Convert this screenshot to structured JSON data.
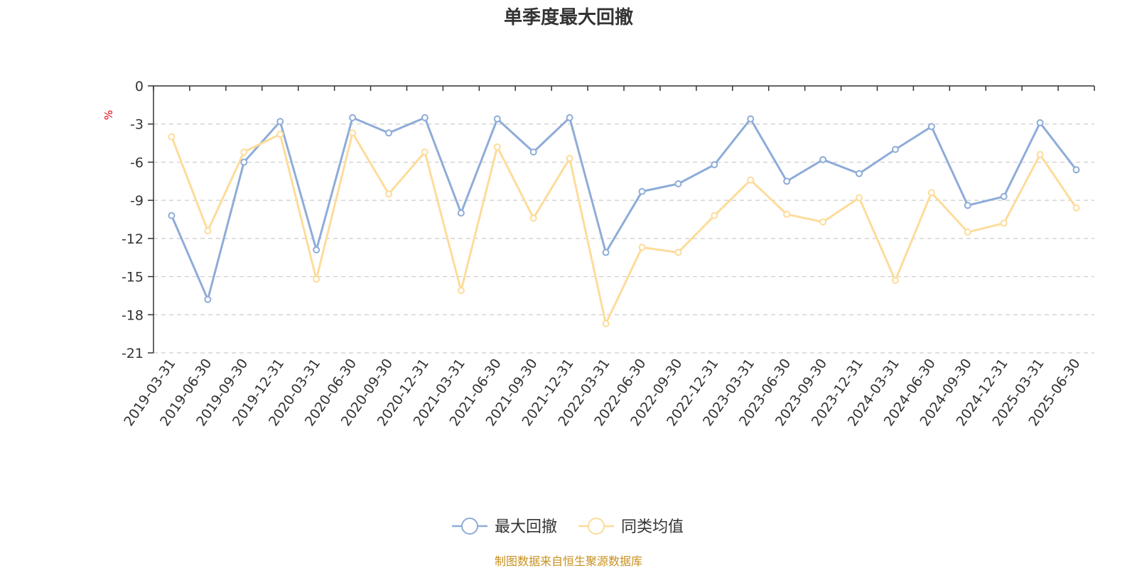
{
  "chart_data": {
    "type": "line",
    "title": "单季度最大回撤",
    "unit_label": "%",
    "x": [
      "2019-03-31",
      "2019-06-30",
      "2019-09-30",
      "2019-12-31",
      "2020-03-31",
      "2020-06-30",
      "2020-09-30",
      "2020-12-31",
      "2021-03-31",
      "2021-06-30",
      "2021-09-30",
      "2021-12-31",
      "2022-03-31",
      "2022-06-30",
      "2022-09-30",
      "2022-12-31",
      "2023-03-31",
      "2023-06-30",
      "2023-09-30",
      "2023-12-31",
      "2024-03-31",
      "2024-06-30",
      "2024-09-30",
      "2024-12-31",
      "2025-03-31",
      "2025-06-30"
    ],
    "yticks": [
      0,
      -3,
      -6,
      -9,
      -12,
      -15,
      -18,
      -21
    ],
    "ylim": [
      -21,
      0
    ],
    "grid": true,
    "legend_position": "bottom",
    "series": [
      {
        "name": "最大回撤",
        "color": "#8eacd8",
        "values": [
          -10.2,
          -16.8,
          -6.0,
          -2.8,
          -12.9,
          -2.5,
          -3.7,
          -2.5,
          -10.0,
          -2.6,
          -5.2,
          -2.5,
          -13.1,
          -8.3,
          -7.7,
          -6.2,
          -2.6,
          -7.5,
          -5.8,
          -6.9,
          -5.0,
          -3.2,
          -9.4,
          -8.7,
          -2.9,
          -6.6
        ]
      },
      {
        "name": "同类均值",
        "color": "#fddc9a",
        "values": [
          -4.0,
          -11.4,
          -5.2,
          -3.8,
          -15.2,
          -3.7,
          -8.5,
          -5.2,
          -16.1,
          -4.8,
          -10.4,
          -5.7,
          -18.7,
          -12.7,
          -13.1,
          -10.2,
          -7.4,
          -10.1,
          -10.7,
          -8.8,
          -15.3,
          -8.4,
          -11.5,
          -10.8,
          -5.4,
          -9.6
        ]
      }
    ],
    "source": "制图数据来自恒生聚源数据库"
  }
}
